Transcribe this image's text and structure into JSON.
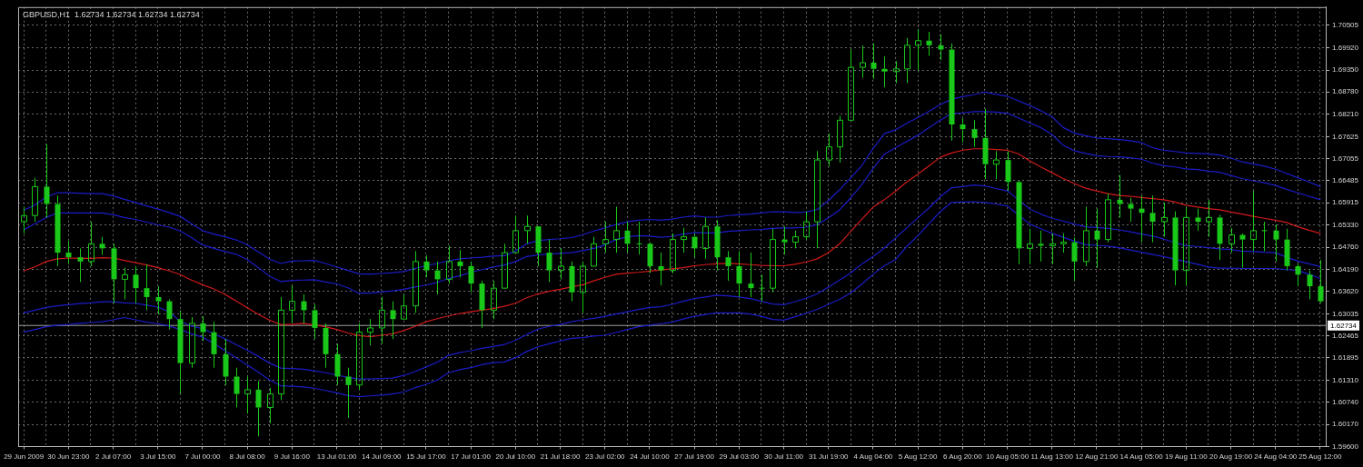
{
  "chart_data": {
    "type": "candlestick",
    "title": "GBPUSD,H1  1.62734 1.62734 1.62734 1.62734",
    "color": "#19c819",
    "categories": [
      "29 Jun 2009",
      null,
      null,
      null,
      "30 Jun 23:00",
      null,
      null,
      null,
      "2 Jul 07:00",
      null,
      null,
      null,
      "3 Jul 15:00",
      null,
      null,
      null,
      "7 Jul 00:00",
      null,
      null,
      null,
      "8 Jul 08:00",
      null,
      null,
      null,
      "9 Jul 16:00",
      null,
      null,
      null,
      "13 Jul 01:00",
      null,
      null,
      null,
      "14 Jul 09:00",
      null,
      null,
      null,
      "15 Jul 17:00",
      null,
      null,
      null,
      "17 Jul 01:00",
      null,
      null,
      null,
      "20 Jul 10:00",
      null,
      null,
      null,
      "21 Jul 18:00",
      null,
      null,
      null,
      "23 Jul 02:00",
      null,
      null,
      null,
      "24 Jul 10:00",
      null,
      null,
      null,
      "27 Jul 19:00",
      null,
      null,
      null,
      "29 Jul 03:00",
      null,
      null,
      null,
      "30 Jul 11:00",
      null,
      null,
      null,
      "31 Jul 19:00",
      null,
      null,
      null,
      "4 Aug 04:00",
      null,
      null,
      null,
      "5 Aug 12:00",
      null,
      null,
      null,
      "6 Aug 20:00",
      null,
      null,
      null,
      "10 Aug 05:00",
      null,
      null,
      null,
      "11 Aug 13:00",
      null,
      null,
      null,
      "12 Aug 21:00",
      null,
      null,
      null,
      "14 Aug 05:00",
      null,
      null,
      null,
      "19 Aug 11:00",
      null,
      null,
      null,
      "20 Aug 19:00",
      null,
      null,
      null,
      "24 Aug 04:00",
      null,
      null,
      null,
      "25 Aug 12:00"
    ],
    "ohlc": [
      [
        1.6542,
        1.6581,
        1.6512,
        1.6558
      ],
      [
        1.6558,
        1.6656,
        1.6542,
        1.6633
      ],
      [
        1.6633,
        1.6743,
        1.6553,
        1.6588
      ],
      [
        1.6588,
        1.661,
        1.6427,
        1.6462
      ],
      [
        1.6462,
        1.6492,
        1.6432,
        1.645
      ],
      [
        1.645,
        1.6473,
        1.6386,
        1.6439
      ],
      [
        1.6439,
        1.6542,
        1.6427,
        1.6485
      ],
      [
        1.6485,
        1.6503,
        1.6457,
        1.6473
      ],
      [
        1.6473,
        1.6485,
        1.6331,
        1.6393
      ],
      [
        1.6393,
        1.6423,
        1.6341,
        1.6405
      ],
      [
        1.6405,
        1.6427,
        1.6331,
        1.637
      ],
      [
        1.637,
        1.6432,
        1.6313,
        1.6347
      ],
      [
        1.6347,
        1.6375,
        1.6302,
        1.6336
      ],
      [
        1.6336,
        1.6341,
        1.6263,
        1.629
      ],
      [
        1.629,
        1.6313,
        1.6096,
        1.6176
      ],
      [
        1.6176,
        1.6295,
        1.6164,
        1.6279
      ],
      [
        1.6279,
        1.6297,
        1.6233,
        1.6256
      ],
      [
        1.6256,
        1.6283,
        1.6164,
        1.6199
      ],
      [
        1.6199,
        1.6238,
        1.6119,
        1.6141
      ],
      [
        1.6141,
        1.6164,
        1.6061,
        1.6096
      ],
      [
        1.6096,
        1.6141,
        1.6045,
        1.6107
      ],
      [
        1.6107,
        1.613,
        1.5986,
        1.6061
      ],
      [
        1.6061,
        1.6112,
        1.602,
        1.6096
      ],
      [
        1.6096,
        1.6347,
        1.608,
        1.6313
      ],
      [
        1.6313,
        1.6377,
        1.6279,
        1.6336
      ],
      [
        1.6336,
        1.6354,
        1.6279,
        1.6313
      ],
      [
        1.6313,
        1.6329,
        1.6238,
        1.6267
      ],
      [
        1.6267,
        1.6279,
        1.6164,
        1.6199
      ],
      [
        1.6199,
        1.6226,
        1.6119,
        1.6141
      ],
      [
        1.6141,
        1.6164,
        1.6034,
        1.6119
      ],
      [
        1.6119,
        1.6279,
        1.6107,
        1.6256
      ],
      [
        1.6256,
        1.629,
        1.6222,
        1.6267
      ],
      [
        1.6267,
        1.6347,
        1.6226,
        1.6313
      ],
      [
        1.6313,
        1.6336,
        1.6238,
        1.629
      ],
      [
        1.629,
        1.6354,
        1.629,
        1.6324
      ],
      [
        1.6324,
        1.6466,
        1.6306,
        1.6439
      ],
      [
        1.6439,
        1.6455,
        1.6398,
        1.6416
      ],
      [
        1.6416,
        1.6439,
        1.6354,
        1.6393
      ],
      [
        1.6393,
        1.648,
        1.6382,
        1.6439
      ],
      [
        1.6439,
        1.6469,
        1.6398,
        1.6427
      ],
      [
        1.6427,
        1.6439,
        1.6359,
        1.6382
      ],
      [
        1.6382,
        1.6389,
        1.6267,
        1.6313
      ],
      [
        1.6313,
        1.6389,
        1.629,
        1.637
      ],
      [
        1.637,
        1.6485,
        1.637,
        1.6462
      ],
      [
        1.6462,
        1.6558,
        1.6462,
        1.6519
      ],
      [
        1.6519,
        1.6558,
        1.6485,
        1.653
      ],
      [
        1.653,
        1.653,
        1.6427,
        1.6462
      ],
      [
        1.6462,
        1.6496,
        1.6386,
        1.6416
      ],
      [
        1.6416,
        1.6473,
        1.6393,
        1.6427
      ],
      [
        1.6427,
        1.6439,
        1.6336,
        1.6359
      ],
      [
        1.6359,
        1.6439,
        1.6306,
        1.6427
      ],
      [
        1.6427,
        1.6503,
        1.6427,
        1.6485
      ],
      [
        1.6485,
        1.6542,
        1.6462,
        1.6496
      ],
      [
        1.6496,
        1.6581,
        1.6462,
        1.6519
      ],
      [
        1.6519,
        1.6542,
        1.6462,
        1.6485
      ],
      [
        1.6485,
        1.6542,
        1.6457,
        1.6485
      ],
      [
        1.6485,
        1.6489,
        1.6409,
        1.6427
      ],
      [
        1.6427,
        1.6462,
        1.6377,
        1.6416
      ],
      [
        1.6416,
        1.6512,
        1.6409,
        1.6496
      ],
      [
        1.6496,
        1.6526,
        1.6462,
        1.6503
      ],
      [
        1.6503,
        1.6512,
        1.645,
        1.6473
      ],
      [
        1.6473,
        1.6553,
        1.6446,
        1.653
      ],
      [
        1.653,
        1.6546,
        1.6416,
        1.645
      ],
      [
        1.645,
        1.6466,
        1.6389,
        1.6427
      ],
      [
        1.6427,
        1.6466,
        1.6347,
        1.6382
      ],
      [
        1.6382,
        1.6462,
        1.6347,
        1.637
      ],
      [
        1.637,
        1.6405,
        1.6336,
        1.637
      ],
      [
        1.637,
        1.6524,
        1.6359,
        1.6496
      ],
      [
        1.6496,
        1.653,
        1.6457,
        1.6489
      ],
      [
        1.6489,
        1.6519,
        1.6473,
        1.6503
      ],
      [
        1.6503,
        1.6569,
        1.6496,
        1.6542
      ],
      [
        1.6542,
        1.6725,
        1.6473,
        1.6702
      ],
      [
        1.6702,
        1.6771,
        1.6686,
        1.6736
      ],
      [
        1.6736,
        1.6816,
        1.6695,
        1.6805
      ],
      [
        1.6805,
        1.6988,
        1.6805,
        1.6942
      ],
      [
        1.6942,
        1.6999,
        1.6915,
        1.6954
      ],
      [
        1.6954,
        1.7004,
        1.6912,
        1.6938
      ],
      [
        1.6938,
        1.697,
        1.689,
        1.6931
      ],
      [
        1.6931,
        1.6958,
        1.6901,
        1.6938
      ],
      [
        1.6938,
        1.7018,
        1.6901,
        1.6999
      ],
      [
        1.6999,
        1.7041,
        1.6935,
        1.7011
      ],
      [
        1.7011,
        1.7034,
        1.6972,
        1.6999
      ],
      [
        1.6999,
        1.7027,
        1.6961,
        1.6988
      ],
      [
        1.6988,
        1.7004,
        1.6752,
        1.6794
      ],
      [
        1.6794,
        1.681,
        1.6748,
        1.6782
      ],
      [
        1.6782,
        1.6805,
        1.6736,
        1.6759
      ],
      [
        1.6759,
        1.6835,
        1.6652,
        1.6691
      ],
      [
        1.6691,
        1.6725,
        1.6652,
        1.6702
      ],
      [
        1.6702,
        1.6725,
        1.6622,
        1.6645
      ],
      [
        1.6645,
        1.6649,
        1.6432,
        1.6473
      ],
      [
        1.6473,
        1.6524,
        1.6432,
        1.6485
      ],
      [
        1.6485,
        1.6519,
        1.6439,
        1.648
      ],
      [
        1.648,
        1.6512,
        1.6432,
        1.6485
      ],
      [
        1.6485,
        1.6512,
        1.6462,
        1.6489
      ],
      [
        1.6489,
        1.6501,
        1.6389,
        1.6439
      ],
      [
        1.6439,
        1.6581,
        1.6427,
        1.6519
      ],
      [
        1.6519,
        1.6576,
        1.6423,
        1.6496
      ],
      [
        1.6496,
        1.6615,
        1.6489,
        1.6599
      ],
      [
        1.6599,
        1.6663,
        1.6553,
        1.6588
      ],
      [
        1.6588,
        1.6604,
        1.6542,
        1.6576
      ],
      [
        1.6576,
        1.661,
        1.6489,
        1.6565
      ],
      [
        1.6565,
        1.661,
        1.6489,
        1.6542
      ],
      [
        1.6542,
        1.6592,
        1.6503,
        1.6553
      ],
      [
        1.6553,
        1.6569,
        1.6377,
        1.6416
      ],
      [
        1.6416,
        1.6581,
        1.6377,
        1.6553
      ],
      [
        1.6553,
        1.6576,
        1.6519,
        1.6542
      ],
      [
        1.6542,
        1.6599,
        1.6503,
        1.6553
      ],
      [
        1.6553,
        1.656,
        1.6443,
        1.6485
      ],
      [
        1.6485,
        1.6526,
        1.6462,
        1.6508
      ],
      [
        1.6508,
        1.6512,
        1.6423,
        1.6496
      ],
      [
        1.6496,
        1.6622,
        1.6466,
        1.6519
      ],
      [
        1.6519,
        1.6542,
        1.6466,
        1.6519
      ],
      [
        1.6519,
        1.6535,
        1.6439,
        1.6496
      ],
      [
        1.6496,
        1.6524,
        1.6416,
        1.6427
      ],
      [
        1.6427,
        1.6434,
        1.6375,
        1.6405
      ],
      [
        1.6405,
        1.6416,
        1.6341,
        1.6375
      ],
      [
        1.6375,
        1.6443,
        1.6331,
        1.6336
      ]
    ],
    "series": [
      {
        "type": "line",
        "color": "#d01a1a",
        "values": [
          1.6415,
          1.6425,
          1.6439,
          1.6446,
          1.6448,
          1.6447,
          1.6447,
          1.6449,
          1.6448,
          1.6442,
          1.6436,
          1.643,
          1.6423,
          1.6415,
          1.6405,
          1.6391,
          1.6379,
          1.6368,
          1.6354,
          1.6337,
          1.6319,
          1.6302,
          1.6287,
          1.6276,
          1.6276,
          1.6279,
          1.6275,
          1.627,
          1.6263,
          1.6254,
          1.6247,
          1.6244,
          1.6248,
          1.6252,
          1.626,
          1.6271,
          1.6283,
          1.6291,
          1.6298,
          1.6304,
          1.6309,
          1.6313,
          1.6317,
          1.6323,
          1.6331,
          1.6345,
          1.6355,
          1.6362,
          1.6367,
          1.6373,
          1.6379,
          1.6389,
          1.6398,
          1.6406,
          1.6409,
          1.6411,
          1.6414,
          1.6417,
          1.642,
          1.6423,
          1.6428,
          1.6431,
          1.6433,
          1.6434,
          1.6433,
          1.6431,
          1.6429,
          1.6428,
          1.6428,
          1.6432,
          1.6438,
          1.6446,
          1.6462,
          1.6485,
          1.6517,
          1.6549,
          1.658,
          1.6599,
          1.6621,
          1.6645,
          1.6665,
          1.6687,
          1.6709,
          1.672,
          1.6727,
          1.6731,
          1.6731,
          1.6729,
          1.6727,
          1.6718,
          1.67,
          1.6684,
          1.6669,
          1.6654,
          1.6641,
          1.6629,
          1.6622,
          1.6615,
          1.661,
          1.6608,
          1.6605,
          1.6602,
          1.6599,
          1.6593,
          1.6585,
          1.658,
          1.6576,
          1.6573,
          1.6567,
          1.6562,
          1.6556,
          1.6551,
          1.6546,
          1.654,
          1.6529,
          1.652,
          1.6512
        ]
      },
      {
        "type": "line",
        "color": "#1c1cc8",
        "values": [
          1.6572,
          1.6585,
          1.6606,
          1.6617,
          1.6617,
          1.6616,
          1.6615,
          1.6615,
          1.6609,
          1.66,
          1.6592,
          1.6583,
          1.6575,
          1.6566,
          1.6556,
          1.6537,
          1.6519,
          1.651,
          1.6503,
          1.6495,
          1.6482,
          1.6464,
          1.6445,
          1.6434,
          1.644,
          1.6441,
          1.6442,
          1.6434,
          1.6425,
          1.6416,
          1.6407,
          1.6406,
          1.6408,
          1.641,
          1.6413,
          1.6421,
          1.6428,
          1.6434,
          1.6441,
          1.6446,
          1.6448,
          1.645,
          1.6453,
          1.6454,
          1.6466,
          1.6485,
          1.6493,
          1.6496,
          1.6498,
          1.6501,
          1.6508,
          1.6518,
          1.6526,
          1.6535,
          1.6542,
          1.6546,
          1.6548,
          1.6546,
          1.6549,
          1.6554,
          1.6557,
          1.6554,
          1.6554,
          1.6558,
          1.656,
          1.6562,
          1.6565,
          1.6568,
          1.6568,
          1.6566,
          1.6567,
          1.6574,
          1.6597,
          1.6625,
          1.6656,
          1.6688,
          1.6732,
          1.677,
          1.678,
          1.6797,
          1.6812,
          1.6828,
          1.6845,
          1.6859,
          1.6866,
          1.6871,
          1.6878,
          1.6872,
          1.6867,
          1.6855,
          1.6843,
          1.683,
          1.6814,
          1.6786,
          1.6772,
          1.6765,
          1.6759,
          1.6757,
          1.6755,
          1.6752,
          1.6747,
          1.6734,
          1.6727,
          1.6724,
          1.672,
          1.6719,
          1.6718,
          1.6715,
          1.6707,
          1.6697,
          1.6692,
          1.6686,
          1.6678,
          1.6667,
          1.6656,
          1.6645,
          1.6633
        ]
      },
      {
        "type": "line",
        "color": "#1c1cc8",
        "values": [
          1.6521,
          1.6537,
          1.6553,
          1.6565,
          1.6565,
          1.6565,
          1.6565,
          1.6565,
          1.656,
          1.6553,
          1.6548,
          1.6541,
          1.6534,
          1.6528,
          1.6518,
          1.6501,
          1.6482,
          1.6473,
          1.6465,
          1.6458,
          1.6444,
          1.6423,
          1.6401,
          1.6387,
          1.639,
          1.6391,
          1.6392,
          1.6386,
          1.6381,
          1.6371,
          1.6357,
          1.6357,
          1.636,
          1.6363,
          1.6367,
          1.6373,
          1.6378,
          1.6385,
          1.6395,
          1.6402,
          1.6411,
          1.6418,
          1.6425,
          1.643,
          1.6439,
          1.6452,
          1.6456,
          1.6458,
          1.646,
          1.6462,
          1.6467,
          1.6473,
          1.6482,
          1.6496,
          1.6503,
          1.6506,
          1.6505,
          1.6502,
          1.6504,
          1.651,
          1.6514,
          1.6513,
          1.6513,
          1.6517,
          1.6519,
          1.6521,
          1.6522,
          1.6525,
          1.6526,
          1.6526,
          1.6528,
          1.6535,
          1.6552,
          1.6573,
          1.6604,
          1.6639,
          1.668,
          1.6717,
          1.6734,
          1.675,
          1.6766,
          1.6786,
          1.6805,
          1.6822,
          1.6824,
          1.6827,
          1.6827,
          1.6826,
          1.6823,
          1.6811,
          1.6798,
          1.6786,
          1.6768,
          1.674,
          1.6726,
          1.6719,
          1.6713,
          1.6711,
          1.671,
          1.6708,
          1.6704,
          1.6694,
          1.6687,
          1.6684,
          1.6679,
          1.6677,
          1.6673,
          1.667,
          1.6662,
          1.6654,
          1.6648,
          1.6643,
          1.6636,
          1.6626,
          1.6617,
          1.6608,
          1.6599
        ]
      },
      {
        "type": "line",
        "color": "#1c1cc8",
        "values": [
          1.6306,
          1.6313,
          1.632,
          1.6324,
          1.6327,
          1.633,
          1.6332,
          1.6335,
          1.6335,
          1.6332,
          1.6331,
          1.6326,
          1.6321,
          1.6309,
          1.6284,
          1.6272,
          1.6265,
          1.6252,
          1.6239,
          1.6224,
          1.6209,
          1.6193,
          1.6176,
          1.6163,
          1.6162,
          1.616,
          1.6156,
          1.6151,
          1.6145,
          1.6139,
          1.6135,
          1.6135,
          1.6136,
          1.6137,
          1.6144,
          1.6154,
          1.6166,
          1.6178,
          1.6196,
          1.6203,
          1.6208,
          1.6214,
          1.6219,
          1.6224,
          1.6235,
          1.625,
          1.6264,
          1.6271,
          1.6276,
          1.6283,
          1.6288,
          1.6292,
          1.6297,
          1.6303,
          1.6309,
          1.6315,
          1.632,
          1.6322,
          1.6328,
          1.6336,
          1.6343,
          1.6347,
          1.6352,
          1.635,
          1.6347,
          1.6343,
          1.6336,
          1.6329,
          1.6327,
          1.6335,
          1.6344,
          1.6355,
          1.6373,
          1.6391,
          1.641,
          1.6433,
          1.6452,
          1.6474,
          1.65,
          1.6526,
          1.6552,
          1.6578,
          1.6607,
          1.663,
          1.6633,
          1.6637,
          1.6635,
          1.6628,
          1.6622,
          1.6599,
          1.6575,
          1.6562,
          1.6551,
          1.6544,
          1.6536,
          1.6529,
          1.6527,
          1.6525,
          1.6521,
          1.6516,
          1.651,
          1.6505,
          1.6497,
          1.6488,
          1.648,
          1.6478,
          1.6475,
          1.6472,
          1.647,
          1.6466,
          1.6465,
          1.6463,
          1.6462,
          1.645,
          1.644,
          1.6433,
          1.6426
        ]
      },
      {
        "type": "line",
        "color": "#1c1cc8",
        "values": [
          1.6256,
          1.6263,
          1.627,
          1.6274,
          1.6276,
          1.6279,
          1.6281,
          1.6283,
          1.6288,
          1.6294,
          1.6288,
          1.6282,
          1.6278,
          1.6272,
          1.6263,
          1.6252,
          1.6243,
          1.6227,
          1.6208,
          1.619,
          1.6171,
          1.6152,
          1.6132,
          1.6117,
          1.6116,
          1.6114,
          1.6111,
          1.6105,
          1.6099,
          1.6092,
          1.6089,
          1.6091,
          1.6093,
          1.6096,
          1.6101,
          1.6112,
          1.6121,
          1.6132,
          1.6151,
          1.6159,
          1.6164,
          1.6172,
          1.6177,
          1.6179,
          1.619,
          1.6206,
          1.6218,
          1.6226,
          1.6233,
          1.624,
          1.6242,
          1.6246,
          1.6248,
          1.6255,
          1.6263,
          1.627,
          1.6274,
          1.6278,
          1.6282,
          1.629,
          1.6297,
          1.6302,
          1.6306,
          1.6306,
          1.6306,
          1.6303,
          1.6297,
          1.6289,
          1.6287,
          1.6296,
          1.6305,
          1.6315,
          1.6328,
          1.6341,
          1.6358,
          1.6381,
          1.6406,
          1.6428,
          1.6444,
          1.6478,
          1.6506,
          1.6537,
          1.6568,
          1.6592,
          1.6593,
          1.6594,
          1.6592,
          1.6588,
          1.6583,
          1.656,
          1.6536,
          1.6524,
          1.6512,
          1.6502,
          1.6492,
          1.6483,
          1.6481,
          1.6479,
          1.6475,
          1.6469,
          1.6463,
          1.6457,
          1.6452,
          1.6445,
          1.6439,
          1.6432,
          1.6425,
          1.6422,
          1.6422,
          1.6421,
          1.6421,
          1.6421,
          1.6421,
          1.6418,
          1.6416,
          1.6406,
          1.6395
        ]
      }
    ],
    "ylim": [
      1.596,
      1.7098
    ],
    "yticks": [
      {
        "value": 1.596,
        "label": "1.59600"
      },
      {
        "value": 1.6017,
        "label": "1.60170"
      },
      {
        "value": 1.6074,
        "label": "1.60740"
      },
      {
        "value": 1.6131,
        "label": "1.61310"
      },
      1.61895,
      1.62465,
      1.63035,
      {
        "value": 1.6362,
        "label": "1.63620"
      },
      {
        "value": 1.6419,
        "label": "1.64190"
      },
      {
        "value": 1.6476,
        "label": "1.64760"
      },
      {
        "value": 1.6533,
        "label": "1.65330"
      },
      1.65915,
      1.66485,
      1.67055,
      1.67625,
      {
        "value": 1.6821,
        "label": "1.68210"
      },
      {
        "value": 1.6878,
        "label": "1.68780"
      },
      {
        "value": 1.6935,
        "label": "1.69350"
      },
      {
        "value": 1.6992,
        "label": "1.69920"
      },
      1.70505
    ],
    "ref_lines": [
      {
        "axis": "y",
        "value": 1.62734,
        "label": "1.62734",
        "color": "#a0a0a0"
      }
    ],
    "grid": true
  }
}
